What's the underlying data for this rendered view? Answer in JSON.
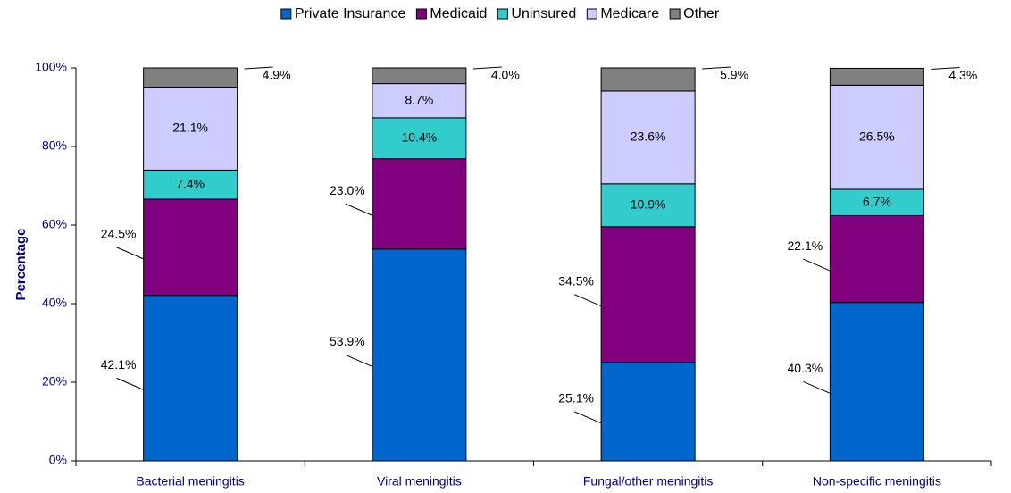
{
  "chart_data": {
    "type": "stacked_bar",
    "y_label": "Percentage",
    "categories": [
      "Bacterial meningitis",
      "Viral meningitis",
      "Fungal/other meningitis",
      "Non-specific meningitis"
    ],
    "series": [
      {
        "name": "Private Insurance",
        "color": "#0066CC",
        "values": [
          42.1,
          53.9,
          25.1,
          40.3
        ],
        "value_labels": [
          "42.1%",
          "53.9%",
          "25.1%",
          "40.3%"
        ]
      },
      {
        "name": "Medicaid",
        "color": "#800080",
        "values": [
          24.5,
          23.0,
          34.5,
          22.1
        ],
        "value_labels": [
          "24.5%",
          "23.0%",
          "34.5%",
          "22.1%"
        ]
      },
      {
        "name": "Uninsured",
        "color": "#33CCCC",
        "values": [
          7.4,
          10.4,
          10.9,
          6.7
        ],
        "value_labels": [
          "7.4%",
          "10.4%",
          "10.9%",
          "6.7%"
        ]
      },
      {
        "name": "Medicare",
        "color": "#CCCCFF",
        "values": [
          21.1,
          8.7,
          23.6,
          26.5
        ],
        "value_labels": [
          "21.1%",
          "8.7%",
          "23.6%",
          "26.5%"
        ]
      },
      {
        "name": "Other",
        "color": "#808080",
        "values": [
          4.9,
          4.0,
          5.9,
          4.3
        ],
        "value_labels": [
          "4.9%",
          "4.0%",
          "5.9%",
          "4.3%"
        ]
      }
    ],
    "ylim": [
      0,
      100
    ],
    "yticks": [
      {
        "value": 0,
        "label": "0%"
      },
      {
        "value": 20,
        "label": "20%"
      },
      {
        "value": 40,
        "label": "40%"
      },
      {
        "value": 60,
        "label": "60%"
      },
      {
        "value": 80,
        "label": "80%"
      },
      {
        "value": 100,
        "label": "100%"
      }
    ],
    "legend": "top"
  }
}
